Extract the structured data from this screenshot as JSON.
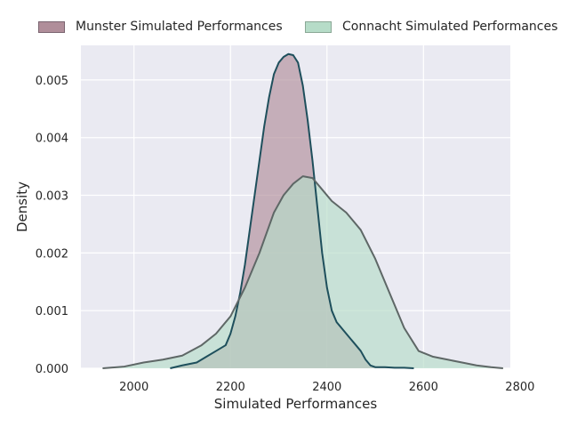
{
  "chart_data": {
    "type": "area",
    "title": "",
    "xlabel": "Simulated Performances",
    "ylabel": "Density",
    "xlim": [
      1890,
      2780
    ],
    "ylim": [
      0,
      0.0056
    ],
    "x_ticks": [
      2000,
      2200,
      2400,
      2600,
      2800
    ],
    "y_ticks": [
      0.0,
      0.001,
      0.002,
      0.003,
      0.004,
      0.005
    ],
    "x_tick_labels": [
      "2000",
      "2200",
      "2400",
      "2600",
      "2800"
    ],
    "y_tick_labels": [
      "0.000",
      "0.001",
      "0.002",
      "0.003",
      "0.004",
      "0.005"
    ],
    "grid": true,
    "legend_position": "top",
    "series": [
      {
        "name": "Munster Simulated Performances",
        "fill_color": "#b08e9a",
        "line_color": "#1e4f5c",
        "x": [
          2075,
          2100,
          2130,
          2150,
          2170,
          2190,
          2200,
          2210,
          2220,
          2230,
          2240,
          2250,
          2260,
          2270,
          2280,
          2290,
          2300,
          2310,
          2320,
          2330,
          2340,
          2350,
          2360,
          2370,
          2380,
          2390,
          2400,
          2410,
          2420,
          2430,
          2440,
          2450,
          2460,
          2470,
          2480,
          2490,
          2500,
          2520,
          2540,
          2560,
          2580
        ],
        "y": [
          0.0,
          5e-05,
          0.0001,
          0.0002,
          0.0003,
          0.0004,
          0.0006,
          0.0009,
          0.0013,
          0.0018,
          0.0024,
          0.003,
          0.0036,
          0.0042,
          0.0047,
          0.0051,
          0.0053,
          0.0054,
          0.00545,
          0.00543,
          0.0053,
          0.0049,
          0.0043,
          0.0036,
          0.0028,
          0.002,
          0.0014,
          0.001,
          0.0008,
          0.0007,
          0.0006,
          0.0005,
          0.0004,
          0.0003,
          0.00015,
          5e-05,
          2e-05,
          2e-05,
          1e-05,
          1e-05,
          0.0
        ]
      },
      {
        "name": "Connacht Simulated Performances",
        "fill_color": "#b6dcc8",
        "line_color": "#5e6766",
        "x": [
          1935,
          1980,
          2020,
          2060,
          2100,
          2140,
          2170,
          2200,
          2230,
          2260,
          2290,
          2310,
          2330,
          2350,
          2370,
          2390,
          2410,
          2440,
          2470,
          2500,
          2530,
          2560,
          2590,
          2620,
          2650,
          2680,
          2710,
          2740,
          2765
        ],
        "y": [
          0.0,
          3e-05,
          0.0001,
          0.00015,
          0.00022,
          0.0004,
          0.0006,
          0.0009,
          0.0014,
          0.002,
          0.0027,
          0.003,
          0.0032,
          0.00333,
          0.0033,
          0.0031,
          0.0029,
          0.0027,
          0.0024,
          0.0019,
          0.0013,
          0.0007,
          0.0003,
          0.0002,
          0.00015,
          0.0001,
          5e-05,
          2e-05,
          0.0
        ]
      }
    ]
  },
  "colors": {
    "plot_background": "#eaeaf2",
    "grid": "#ffffff"
  }
}
